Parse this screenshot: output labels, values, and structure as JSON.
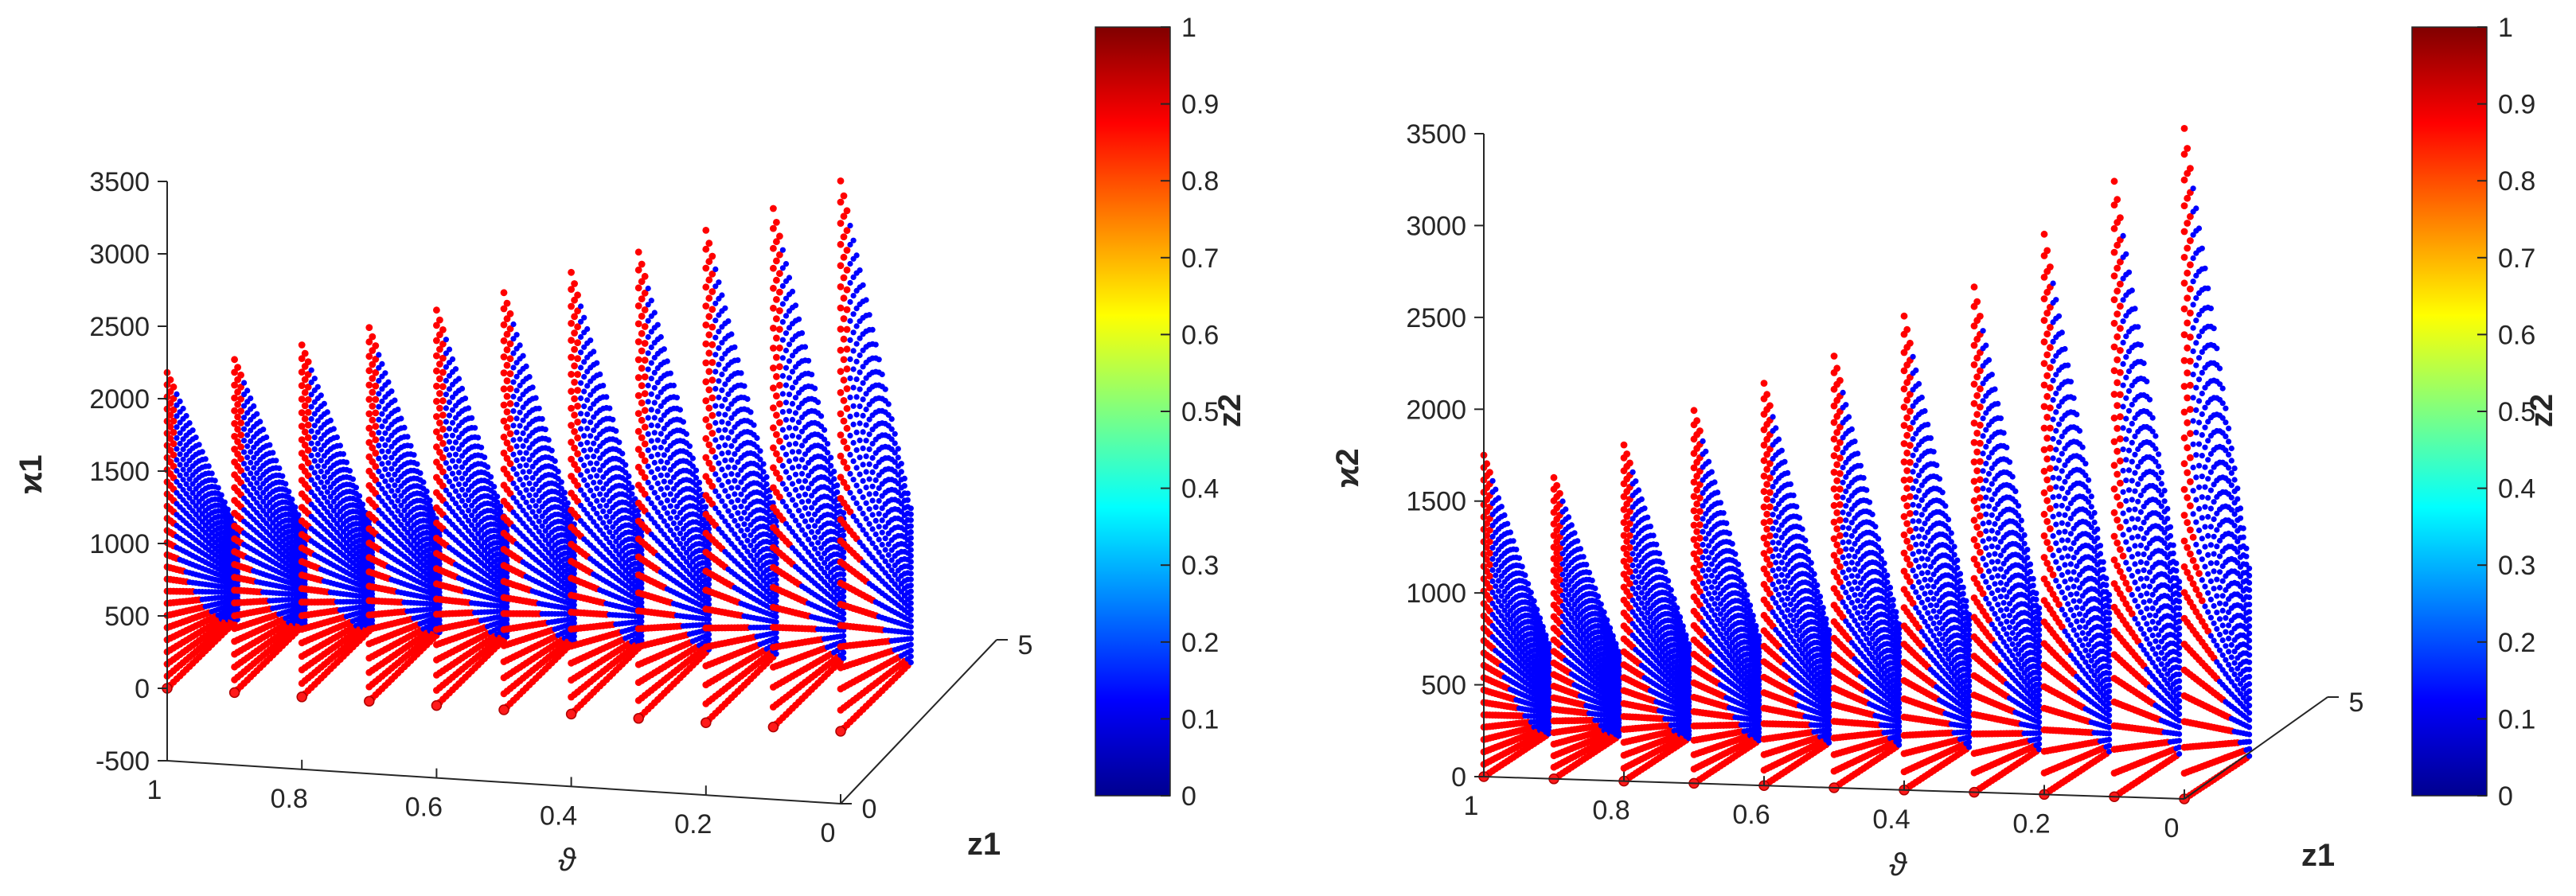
{
  "chart_data": [
    {
      "type": "scatter",
      "projection": "3d",
      "xlabel": "ϑ",
      "ylabel": "z1",
      "zlabel": "ϰ1",
      "colorbar_label": "z2",
      "x_ticks": [
        "1",
        "0.8",
        "0.6",
        "0.4",
        "0.2",
        "0"
      ],
      "y_ticks": [
        "0",
        "5"
      ],
      "z_ticks": [
        "-500",
        "0",
        "500",
        "1000",
        "1500",
        "2000",
        "2500",
        "3000",
        "3500"
      ],
      "colorbar_ticks": [
        "0",
        "0.1",
        "0.2",
        "0.3",
        "0.4",
        "0.5",
        "0.6",
        "0.7",
        "0.8",
        "0.9",
        "1"
      ],
      "xlim": [
        0,
        1
      ],
      "ylim": [
        0,
        5
      ],
      "zlim": [
        -500,
        3500
      ],
      "clim": [
        0,
        1
      ],
      "colormap": "jet",
      "grid": false,
      "series": [
        {
          "theta": 1.0,
          "peak": 2180
        },
        {
          "theta": 0.9,
          "peak": 2300
        },
        {
          "theta": 0.8,
          "peak": 2430
        },
        {
          "theta": 0.7,
          "peak": 2580
        },
        {
          "theta": 0.6,
          "peak": 2730
        },
        {
          "theta": 0.5,
          "peak": 2880
        },
        {
          "theta": 0.4,
          "peak": 3050
        },
        {
          "theta": 0.3,
          "peak": 3220
        },
        {
          "theta": 0.2,
          "peak": 3400
        },
        {
          "theta": 0.1,
          "peak": 3580
        },
        {
          "theta": 0.0,
          "peak": 3800
        }
      ]
    },
    {
      "type": "scatter",
      "projection": "3d",
      "xlabel": "ϑ",
      "ylabel": "z1",
      "zlabel": "ϰ2",
      "colorbar_label": "z2",
      "x_ticks": [
        "1",
        "0.8",
        "0.6",
        "0.4",
        "0.2",
        "0"
      ],
      "y_ticks": [
        "5"
      ],
      "z_ticks": [
        "0",
        "500",
        "1000",
        "1500",
        "2000",
        "2500",
        "3000",
        "3500"
      ],
      "colorbar_ticks": [
        "0",
        "0.1",
        "0.2",
        "0.3",
        "0.4",
        "0.5",
        "0.6",
        "0.7",
        "0.8",
        "0.9",
        "1"
      ],
      "xlim": [
        0,
        1
      ],
      "ylim": [
        0,
        5
      ],
      "zlim": [
        0,
        3500
      ],
      "clim": [
        0,
        1
      ],
      "colormap": "jet",
      "grid": false,
      "series": [
        {
          "theta": 1.0,
          "peak": 1750
        },
        {
          "theta": 0.9,
          "peak": 1640
        },
        {
          "theta": 0.8,
          "peak": 1830
        },
        {
          "theta": 0.7,
          "peak": 2030
        },
        {
          "theta": 0.6,
          "peak": 2190
        },
        {
          "theta": 0.5,
          "peak": 2350
        },
        {
          "theta": 0.4,
          "peak": 2580
        },
        {
          "theta": 0.3,
          "peak": 2750
        },
        {
          "theta": 0.2,
          "peak": 3050
        },
        {
          "theta": 0.1,
          "peak": 3350
        },
        {
          "theta": 0.0,
          "peak": 3650
        }
      ]
    }
  ]
}
